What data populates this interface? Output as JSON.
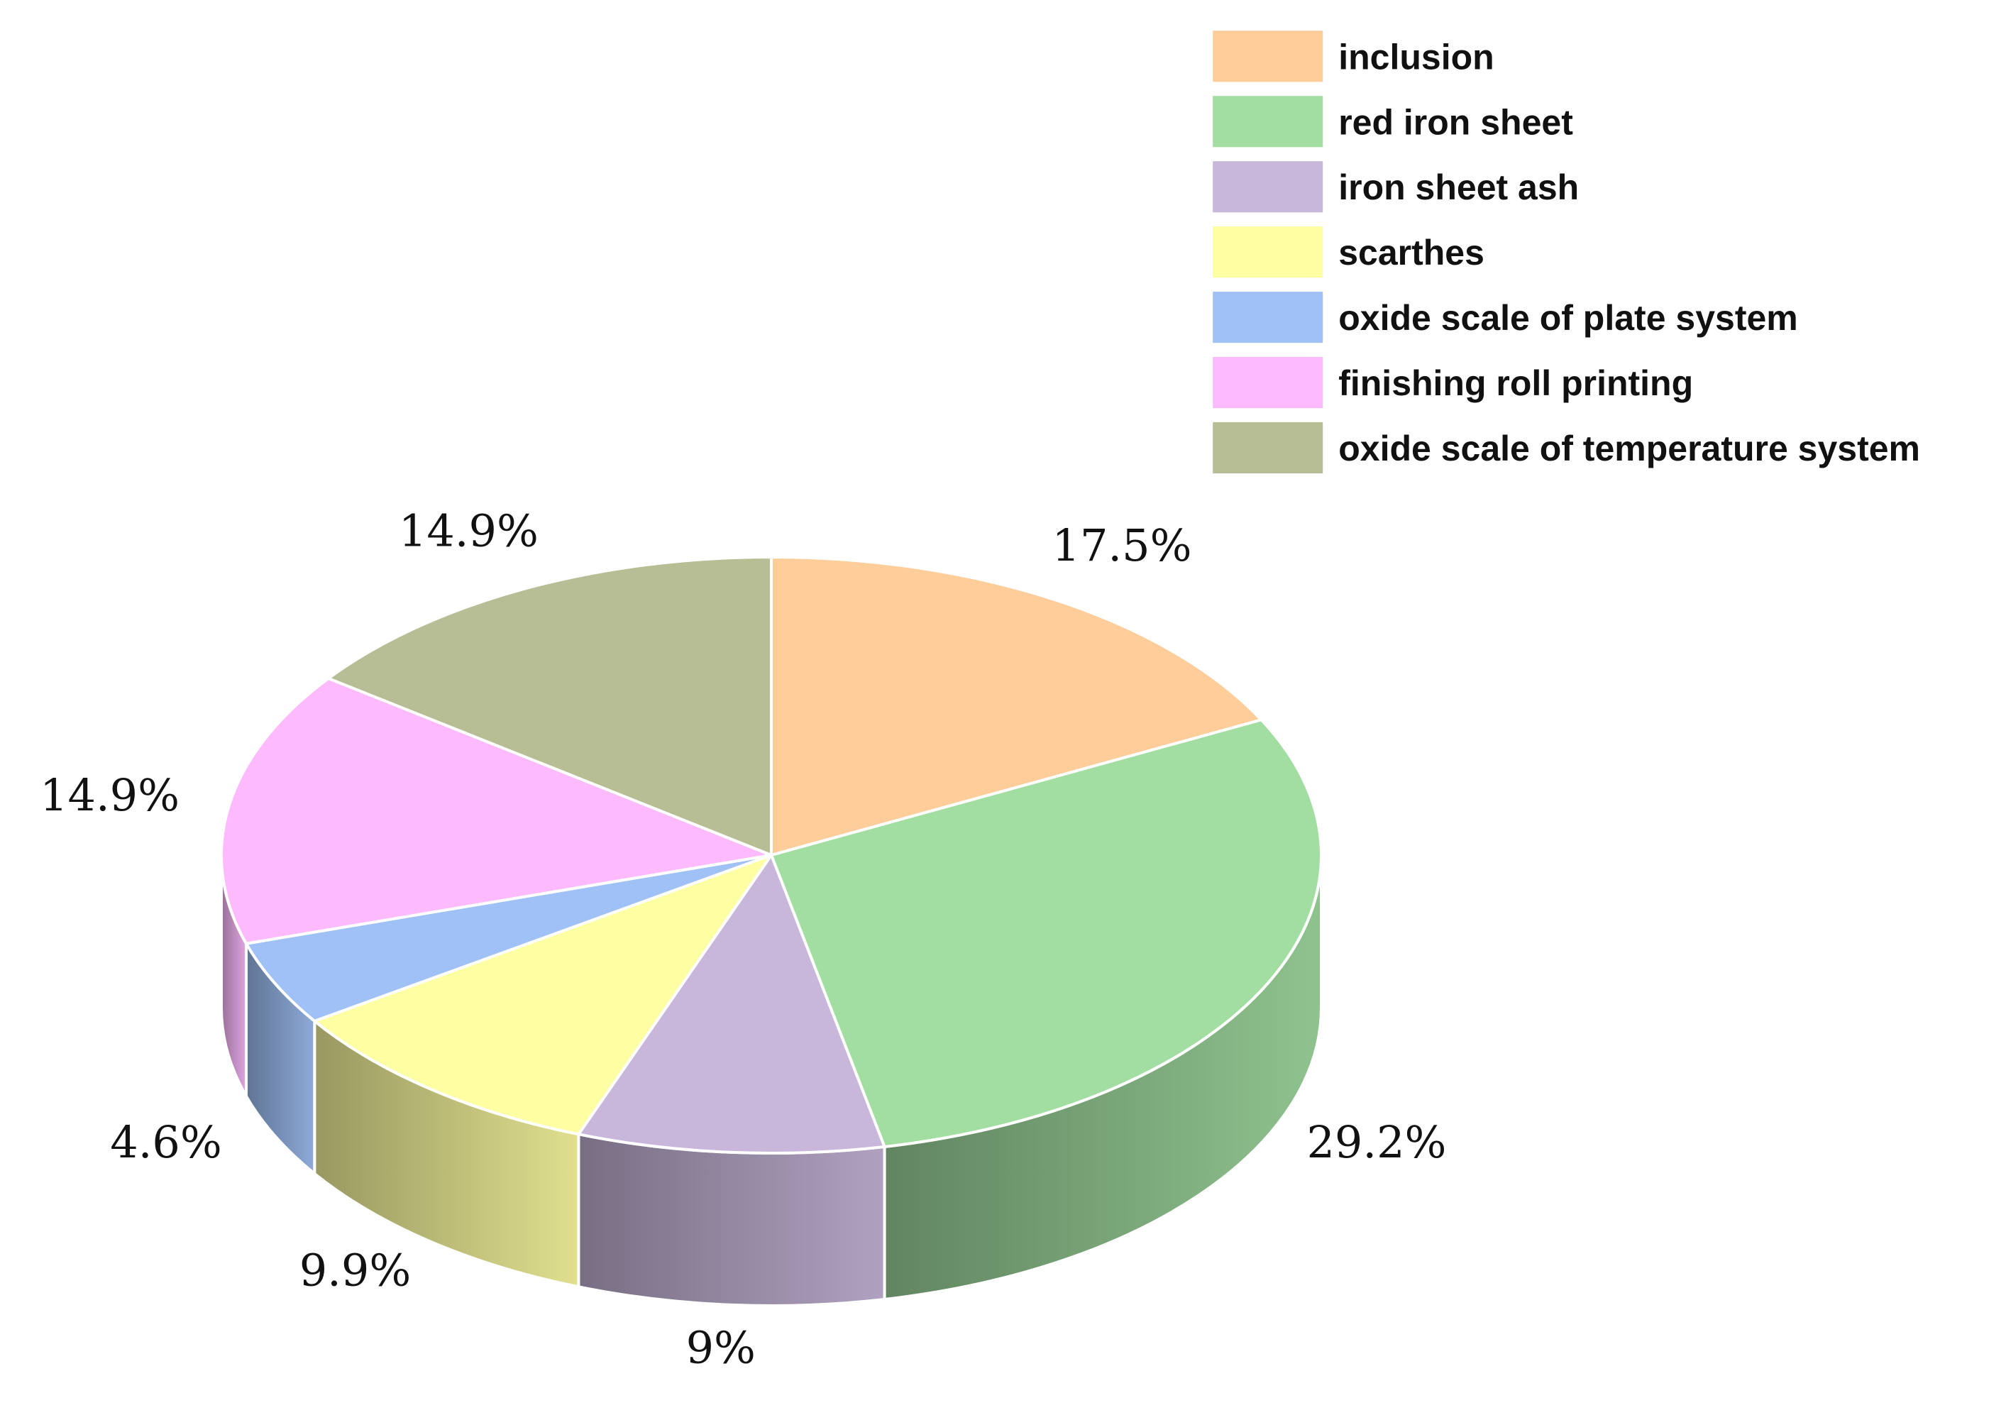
{
  "chart_data": {
    "type": "pie",
    "style": "3d",
    "title": "",
    "legend_position": "top-right",
    "slices": [
      {
        "name": "inclusion",
        "value": 17.5,
        "label": "17.5%",
        "color": "#FECD9A"
      },
      {
        "name": "red iron sheet",
        "value": 29.2,
        "label": "29.2%",
        "color": "#A2DEA1"
      },
      {
        "name": "iron sheet ash",
        "value": 9.0,
        "label": "9%",
        "color": "#C8B7DA"
      },
      {
        "name": "scarthes",
        "value": 9.9,
        "label": "9.9%",
        "color": "#FEFEA2"
      },
      {
        "name": "oxide scale of plate system",
        "value": 4.6,
        "label": "4.6%",
        "color": "#A0C1F6"
      },
      {
        "name": "finishing roll printing",
        "value": 14.9,
        "label": "14.9%",
        "color": "#FDBBFE"
      },
      {
        "name": "oxide scale of temperature system",
        "value": 14.9,
        "label": "14.9%",
        "color": "#B7BD94"
      }
    ]
  }
}
